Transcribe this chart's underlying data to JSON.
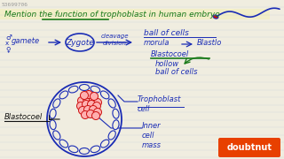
{
  "bg_color": "#f0ede0",
  "line_color_blue": "#1a2cb5",
  "line_color_green": "#1a7a1a",
  "line_color_red": "#cc1111",
  "title": "Mention the function of trophoblast in human embryo",
  "title_color": "#1a7a1a",
  "title_fontsize": 6.5,
  "id_text": "53699706",
  "id_color": "#999999",
  "id_fontsize": 4.5,
  "gamete_text": "gamete",
  "zygote_text": "Zygote",
  "cleavage_text": "cleavage\ndivision",
  "ball_of_cells_text": "ball of cells",
  "morula_text": "morula",
  "blasto_text": "Blastlo",
  "blastocoel_right_text": "Blastocoel",
  "hollow_text": "hollow\nball of cells",
  "trophoblast_text": "Trophoblast\ncell",
  "inner_cell_text": "Inner\ncell\nmass",
  "blastocoel_left_text": "Blastocoel"
}
